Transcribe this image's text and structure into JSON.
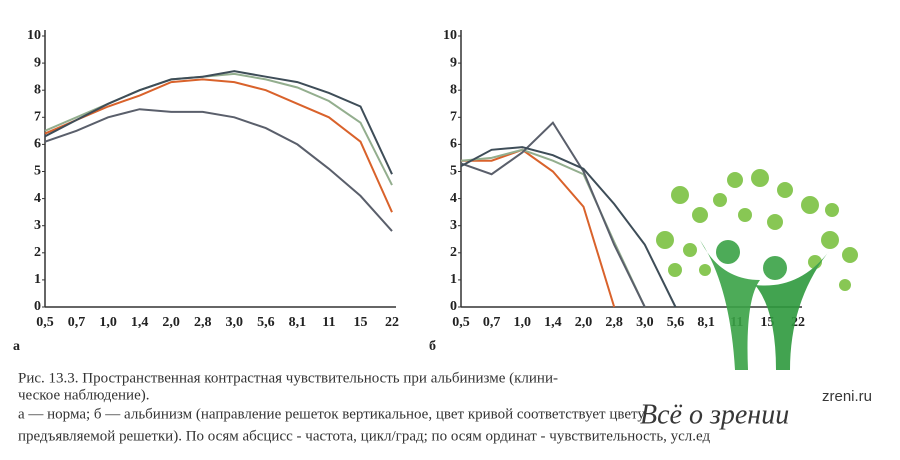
{
  "chart_data": [
    {
      "type": "line",
      "label": "а",
      "categories": [
        "0,5",
        "0,7",
        "1,0",
        "1,4",
        "2,0",
        "2,8",
        "3,0",
        "5,6",
        "8,1",
        "11",
        "15",
        "22"
      ],
      "ylim": [
        0,
        10
      ],
      "yticks": [
        0,
        1,
        2,
        3,
        4,
        5,
        6,
        7,
        8,
        9,
        10
      ],
      "series": [
        {
          "color": "#5a5f6b",
          "values": [
            6.1,
            6.5,
            7.0,
            7.3,
            7.2,
            7.2,
            7.0,
            6.6,
            6.0,
            5.1,
            4.1,
            2.8
          ]
        },
        {
          "color": "#d9622b",
          "values": [
            6.4,
            6.9,
            7.4,
            7.8,
            8.3,
            8.4,
            8.3,
            8.0,
            7.5,
            7.0,
            6.1,
            3.5
          ]
        },
        {
          "color": "#93ae8e",
          "values": [
            6.5,
            7.0,
            7.5,
            8.0,
            8.4,
            8.5,
            8.6,
            8.4,
            8.1,
            7.6,
            6.8,
            4.5
          ]
        },
        {
          "color": "#3e4d58",
          "values": [
            6.3,
            6.9,
            7.5,
            8.0,
            8.4,
            8.5,
            8.7,
            8.5,
            8.3,
            7.9,
            7.4,
            4.9
          ]
        }
      ]
    },
    {
      "type": "line",
      "label": "б",
      "categories": [
        "0,5",
        "0,7",
        "1,0",
        "1,4",
        "2,0",
        "2,8",
        "3,0",
        "5,6",
        "8,1",
        "11",
        "15",
        "22"
      ],
      "ylim": [
        0,
        10
      ],
      "yticks": [
        0,
        1,
        2,
        3,
        4,
        5,
        6,
        7,
        8,
        9,
        10
      ],
      "series": [
        {
          "color": "#d9622b",
          "values": [
            5.4,
            5.4,
            5.8,
            5.0,
            3.7,
            0,
            null,
            null,
            null,
            null,
            null,
            null
          ]
        },
        {
          "color": "#93ae8e",
          "values": [
            5.4,
            5.5,
            5.8,
            5.4,
            4.9,
            2.4,
            0,
            null,
            null,
            null,
            null,
            null
          ]
        },
        {
          "color": "#5a5f6b",
          "values": [
            5.3,
            4.9,
            5.7,
            6.8,
            5.0,
            2.3,
            0,
            null,
            null,
            null,
            null,
            null
          ]
        },
        {
          "color": "#3e4d58",
          "values": [
            5.2,
            5.8,
            5.9,
            5.6,
            5.1,
            3.8,
            2.3,
            0,
            null,
            null,
            null,
            null
          ]
        }
      ]
    }
  ],
  "caption": [
    "Рис. 13.3. Пространственная контрастная чувствительность при альбинизме (клини-",
    "ческое наблюдение).",
    "а — норма; б — альбинизм (направление решеток вертикальное, цвет кривой соответствует цвету",
    "предъявляемой решетки). По осям абсцисс - частота, цикл/град; по осям ординат - чувствительность, усл.ед"
  ],
  "watermark": {
    "site": "zreni.ru",
    "brand": "Всё о зрении"
  }
}
